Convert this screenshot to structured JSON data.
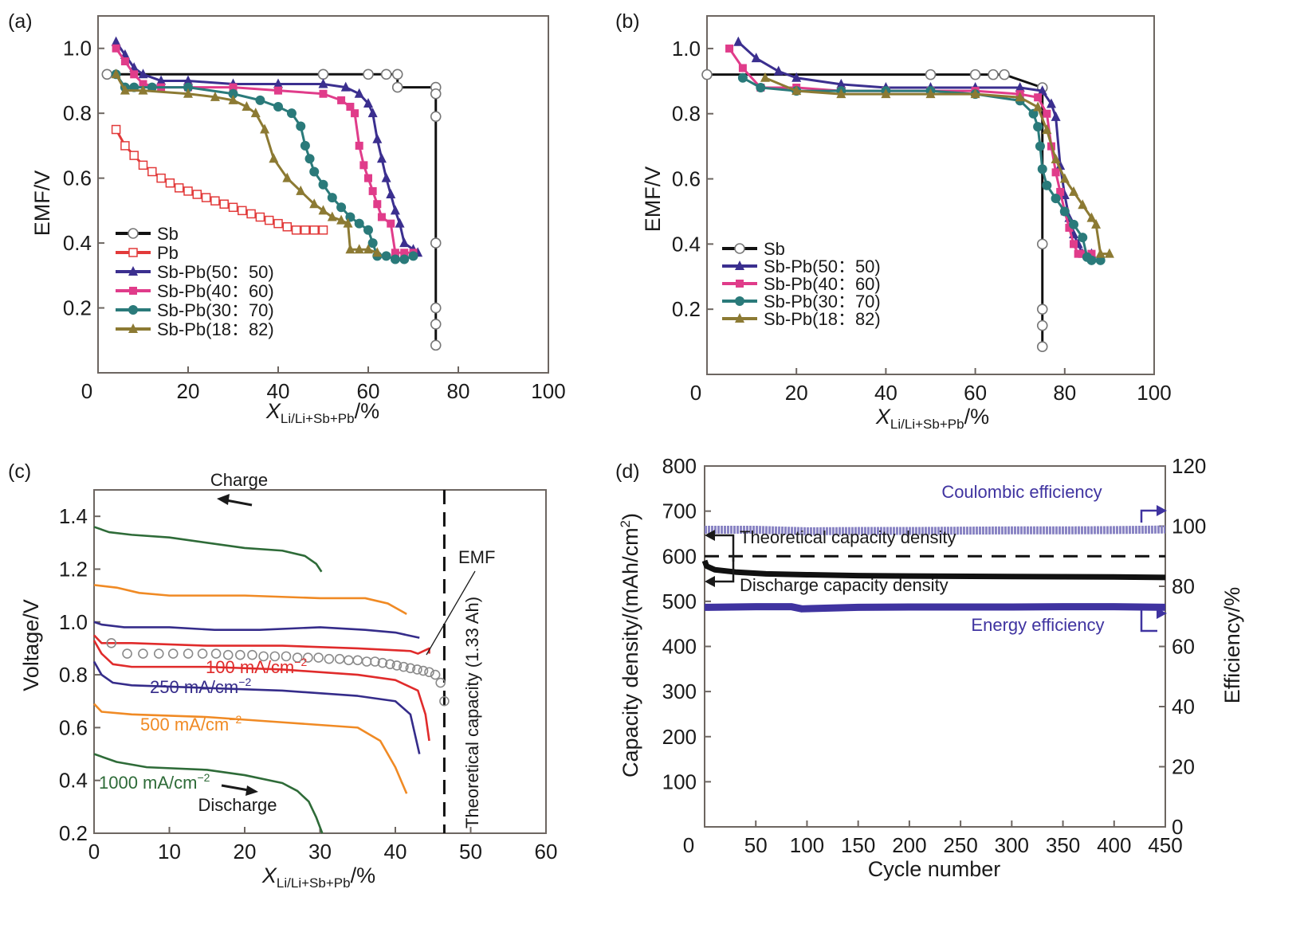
{
  "chart_data": [
    {
      "id": "a",
      "type": "line",
      "panel_label": "(a)",
      "title": "",
      "xlabel": "X",
      "xlabel_sub": "Li/Li+Sb+Pb",
      "xlabel_suffix": "/%",
      "ylabel": "EMF/V",
      "xlim": [
        0,
        100
      ],
      "ylim": [
        0,
        1.1
      ],
      "xticks": [
        0,
        20,
        40,
        60,
        80,
        100
      ],
      "yticks": [
        0.2,
        0.4,
        0.6,
        0.8,
        1.0
      ],
      "ytick_labels": [
        "0.2",
        "0.4",
        "0.6",
        "0.8",
        "1.0"
      ],
      "legend_position": "lower-left",
      "series": [
        {
          "name": "Sb",
          "color": "#111111",
          "marker": "open-circle",
          "x": [
            2,
            50,
            60,
            64,
            66.5,
            66.5,
            75,
            75,
            75,
            75,
            75,
            75,
            75
          ],
          "y": [
            0.92,
            0.92,
            0.92,
            0.92,
            0.92,
            0.88,
            0.88,
            0.86,
            0.79,
            0.4,
            0.2,
            0.15,
            0.085
          ]
        },
        {
          "name": "Pb",
          "color": "#e23a3a",
          "marker": "open-square",
          "x": [
            4,
            6,
            8,
            10,
            12,
            14,
            16,
            18,
            20,
            22,
            24,
            26,
            28,
            30,
            32,
            34,
            36,
            38,
            40,
            42,
            44,
            46,
            48,
            50
          ],
          "y": [
            0.75,
            0.7,
            0.67,
            0.64,
            0.62,
            0.6,
            0.585,
            0.57,
            0.56,
            0.55,
            0.54,
            0.53,
            0.52,
            0.51,
            0.5,
            0.49,
            0.48,
            0.47,
            0.46,
            0.45,
            0.44,
            0.44,
            0.44,
            0.44
          ]
        },
        {
          "name": "Sb-Pb(50：50)",
          "color": "#3b2f8f",
          "marker": "filled-triangle",
          "x": [
            4,
            6,
            8,
            10,
            14,
            20,
            30,
            40,
            50,
            55,
            58,
            60,
            61,
            62,
            63,
            64,
            65,
            66,
            67,
            68,
            70,
            71
          ],
          "y": [
            1.02,
            0.98,
            0.94,
            0.92,
            0.9,
            0.9,
            0.89,
            0.89,
            0.89,
            0.88,
            0.86,
            0.83,
            0.8,
            0.72,
            0.66,
            0.6,
            0.55,
            0.5,
            0.46,
            0.4,
            0.38,
            0.37
          ]
        },
        {
          "name": "Sb-Pb(40：60)",
          "color": "#e03c8a",
          "marker": "filled-square",
          "x": [
            4,
            6,
            8,
            10,
            14,
            20,
            30,
            40,
            50,
            54,
            56,
            57,
            58,
            59,
            60,
            61,
            62,
            63,
            65,
            66,
            68,
            70
          ],
          "y": [
            1.0,
            0.96,
            0.92,
            0.89,
            0.88,
            0.88,
            0.88,
            0.87,
            0.86,
            0.84,
            0.82,
            0.8,
            0.7,
            0.64,
            0.6,
            0.56,
            0.52,
            0.48,
            0.46,
            0.37,
            0.37,
            0.37
          ]
        },
        {
          "name": "Sb-Pb(30：70)",
          "color": "#2a7a7a",
          "marker": "filled-circle",
          "x": [
            4,
            6,
            8,
            12,
            20,
            30,
            36,
            40,
            43,
            45,
            46,
            47,
            48,
            50,
            52,
            54,
            56,
            58,
            60,
            61,
            62,
            64,
            66,
            68,
            70
          ],
          "y": [
            0.92,
            0.88,
            0.88,
            0.88,
            0.88,
            0.86,
            0.84,
            0.82,
            0.8,
            0.76,
            0.7,
            0.66,
            0.62,
            0.58,
            0.54,
            0.51,
            0.48,
            0.46,
            0.44,
            0.4,
            0.36,
            0.36,
            0.35,
            0.35,
            0.36
          ]
        },
        {
          "name": "Sb-Pb(18：82)",
          "color": "#8c7a33",
          "marker": "filled-triangle",
          "x": [
            4,
            6,
            10,
            20,
            26,
            30,
            33,
            35,
            37,
            39,
            42,
            45,
            48,
            50,
            52,
            54,
            55.5,
            56,
            58,
            60,
            62
          ],
          "y": [
            0.92,
            0.87,
            0.87,
            0.86,
            0.85,
            0.84,
            0.82,
            0.8,
            0.75,
            0.66,
            0.6,
            0.56,
            0.52,
            0.5,
            0.48,
            0.47,
            0.46,
            0.38,
            0.38,
            0.38,
            0.37
          ]
        }
      ]
    },
    {
      "id": "b",
      "type": "line",
      "panel_label": "(b)",
      "title": "",
      "xlabel": "X",
      "xlabel_sub": "Li/Li+Sb+Pb",
      "xlabel_suffix": "/%",
      "ylabel": "EMF/V",
      "xlim": [
        0,
        100
      ],
      "ylim": [
        0,
        1.1
      ],
      "xticks": [
        0,
        20,
        40,
        60,
        80,
        100
      ],
      "yticks": [
        0.2,
        0.4,
        0.6,
        0.8,
        1.0
      ],
      "ytick_labels": [
        "0.2",
        "0.4",
        "0.6",
        "0.8",
        "1.0"
      ],
      "legend_position": "lower-left",
      "series": [
        {
          "name": "Sb",
          "color": "#111111",
          "marker": "open-circle",
          "x": [
            0,
            50,
            60,
            64,
            66.5,
            75,
            75,
            75,
            75,
            75
          ],
          "y": [
            0.92,
            0.92,
            0.92,
            0.92,
            0.92,
            0.88,
            0.4,
            0.2,
            0.15,
            0.085
          ]
        },
        {
          "name": "Sb-Pb(50：50)",
          "color": "#3b2f8f",
          "marker": "filled-triangle",
          "x": [
            7,
            11,
            16,
            20,
            30,
            40,
            50,
            60,
            70,
            75,
            77,
            78,
            79,
            80,
            81,
            82,
            83,
            84,
            86
          ],
          "y": [
            1.02,
            0.97,
            0.93,
            0.91,
            0.89,
            0.88,
            0.88,
            0.88,
            0.88,
            0.87,
            0.83,
            0.79,
            0.64,
            0.55,
            0.48,
            0.43,
            0.4,
            0.37,
            0.37
          ]
        },
        {
          "name": "Sb-Pb(40：60)",
          "color": "#e03c8a",
          "marker": "filled-square",
          "x": [
            5,
            8,
            12,
            20,
            30,
            40,
            50,
            60,
            70,
            74,
            76,
            77,
            78,
            79,
            80,
            81,
            82,
            83,
            84,
            86
          ],
          "y": [
            1.0,
            0.94,
            0.88,
            0.88,
            0.87,
            0.87,
            0.87,
            0.87,
            0.86,
            0.85,
            0.8,
            0.7,
            0.62,
            0.56,
            0.5,
            0.45,
            0.4,
            0.37,
            0.37,
            0.37
          ]
        },
        {
          "name": "Sb-Pb(30：70)",
          "color": "#2a7a7a",
          "marker": "filled-circle",
          "x": [
            8,
            12,
            20,
            30,
            40,
            50,
            60,
            70,
            73,
            74,
            74.5,
            75,
            76,
            78,
            80,
            82,
            84,
            85,
            86,
            88
          ],
          "y": [
            0.91,
            0.88,
            0.87,
            0.87,
            0.87,
            0.87,
            0.86,
            0.84,
            0.8,
            0.76,
            0.7,
            0.63,
            0.58,
            0.54,
            0.5,
            0.46,
            0.42,
            0.36,
            0.35,
            0.35
          ]
        },
        {
          "name": "Sb-Pb(18：82)",
          "color": "#8c7a33",
          "marker": "filled-triangle",
          "x": [
            13,
            20,
            30,
            40,
            50,
            60,
            70,
            74,
            76,
            78,
            80,
            82,
            84,
            86,
            87,
            88,
            90
          ],
          "y": [
            0.91,
            0.87,
            0.86,
            0.86,
            0.86,
            0.86,
            0.85,
            0.82,
            0.75,
            0.66,
            0.6,
            0.56,
            0.52,
            0.48,
            0.46,
            0.37,
            0.37
          ]
        }
      ]
    },
    {
      "id": "c",
      "type": "line",
      "panel_label": "(c)",
      "title": "",
      "xlabel": "X",
      "xlabel_sub": "Li/Li+Sb+Pb",
      "xlabel_suffix": "/%",
      "ylabel": "Voltage/V",
      "xlim": [
        0,
        60
      ],
      "ylim": [
        0.2,
        1.5
      ],
      "xticks": [
        0,
        10,
        20,
        30,
        40,
        50,
        60
      ],
      "yticks": [
        0.2,
        0.4,
        0.6,
        0.8,
        1.0,
        1.2,
        1.4
      ],
      "ytick_labels": [
        "0.2",
        "0.4",
        "0.6",
        "0.8",
        "1.0",
        "1.2",
        "1.4"
      ],
      "vline": {
        "x": 46.5,
        "style": "dashed",
        "label": "Theoretical capacity (1.33 Ah)"
      },
      "series": [
        {
          "name": "1000 mA/cm⁻² charge",
          "color": "#2e6b38",
          "x": [
            0,
            2,
            5,
            10,
            20,
            25,
            28,
            29.5,
            30.2
          ],
          "y": [
            1.36,
            1.34,
            1.33,
            1.32,
            1.28,
            1.27,
            1.25,
            1.22,
            1.19
          ]
        },
        {
          "name": "500 mA/cm⁻² charge",
          "color": "#f08a24",
          "x": [
            0,
            3,
            6,
            10,
            20,
            30,
            36,
            39,
            41.5
          ],
          "y": [
            1.14,
            1.13,
            1.11,
            1.1,
            1.1,
            1.09,
            1.09,
            1.07,
            1.03
          ]
        },
        {
          "name": "250 mA/cm⁻² charge",
          "color": "#352c8a",
          "x": [
            0,
            1,
            4,
            10,
            16,
            22,
            30,
            36,
            40,
            43.2
          ],
          "y": [
            1.0,
            0.99,
            0.98,
            0.98,
            0.97,
            0.97,
            0.98,
            0.97,
            0.96,
            0.94
          ]
        },
        {
          "name": "100 mA/cm⁻² charge",
          "color": "#e02b2b",
          "x": [
            0,
            1,
            2.5,
            5,
            15,
            25,
            35,
            42,
            43,
            44.5,
            44.5
          ],
          "y": [
            0.95,
            0.92,
            0.92,
            0.92,
            0.91,
            0.91,
            0.9,
            0.89,
            0.88,
            0.9,
            0.88
          ]
        },
        {
          "name": "100 mA/cm⁻² discharge",
          "color": "#e02b2b",
          "x": [
            0,
            1,
            2.5,
            5,
            15,
            25,
            35,
            40,
            43,
            44,
            44.5
          ],
          "y": [
            0.93,
            0.88,
            0.84,
            0.83,
            0.83,
            0.82,
            0.8,
            0.78,
            0.74,
            0.65,
            0.55
          ]
        },
        {
          "name": "250 mA/cm⁻² discharge",
          "color": "#352c8a",
          "x": [
            0,
            1,
            2.5,
            5,
            15,
            25,
            35,
            40,
            42,
            43.2
          ],
          "y": [
            0.85,
            0.8,
            0.77,
            0.76,
            0.75,
            0.74,
            0.72,
            0.7,
            0.65,
            0.5
          ]
        },
        {
          "name": "500 mA/cm⁻² discharge",
          "color": "#f08a24",
          "x": [
            0,
            1,
            5,
            15,
            25,
            35,
            38,
            40,
            41.5
          ],
          "y": [
            0.69,
            0.66,
            0.65,
            0.64,
            0.62,
            0.6,
            0.55,
            0.45,
            0.35
          ]
        },
        {
          "name": "1000 mA/cm⁻² discharge",
          "color": "#2e6b38",
          "x": [
            0,
            3,
            7,
            15,
            20,
            25,
            27,
            28.5,
            29.5,
            30.3
          ],
          "y": [
            0.5,
            0.47,
            0.45,
            0.44,
            0.42,
            0.39,
            0.36,
            0.32,
            0.26,
            0.2
          ]
        },
        {
          "name": "EMF",
          "color": "#888888",
          "marker": "open-circle",
          "x": [
            2.3,
            4.4,
            6.5,
            8.6,
            10.5,
            12.5,
            14.4,
            16.2,
            17.8,
            19.4,
            21,
            22.5,
            24,
            25.5,
            27,
            28.4,
            29.8,
            31.2,
            32.6,
            33.8,
            35,
            36.2,
            37.3,
            38.3,
            39.3,
            40.2,
            41.1,
            42,
            42.9,
            43.7,
            44.5,
            45.3,
            46,
            46.5
          ],
          "y": [
            0.92,
            0.88,
            0.88,
            0.88,
            0.88,
            0.88,
            0.88,
            0.88,
            0.875,
            0.875,
            0.875,
            0.87,
            0.87,
            0.87,
            0.865,
            0.865,
            0.865,
            0.86,
            0.86,
            0.855,
            0.855,
            0.85,
            0.85,
            0.845,
            0.84,
            0.835,
            0.83,
            0.825,
            0.82,
            0.815,
            0.81,
            0.8,
            0.77,
            0.7
          ]
        }
      ],
      "annotations": {
        "charge": "Charge",
        "discharge": "Discharge",
        "emf": "EMF",
        "i100": "100 mA/cm",
        "i250": "250 mA/cm",
        "i500": "500 mA/cm",
        "i1000": "1000 mA/cm",
        "exponent": "−2"
      }
    },
    {
      "id": "d",
      "type": "line",
      "panel_label": "(d)",
      "title": "",
      "xlabel": "Cycle number",
      "ylabel": "Capacity density/(mAh/cm",
      "ylabel_sup": "2",
      "ylabel_end": ")",
      "y2label": "Efficiency/%",
      "xlim": [
        0,
        450
      ],
      "ylim": [
        0,
        800
      ],
      "y2lim": [
        0,
        120
      ],
      "xticks": [
        0,
        50,
        100,
        150,
        200,
        250,
        300,
        350,
        400,
        450
      ],
      "yticks": [
        100,
        200,
        300,
        400,
        500,
        600,
        700,
        800
      ],
      "ytick_labels": [
        "100",
        "200",
        "300",
        "400",
        "500",
        "600",
        "700",
        "800"
      ],
      "y2ticks": [
        0,
        20,
        40,
        60,
        80,
        100,
        120
      ],
      "series": [
        {
          "name": "Coulombic efficiency",
          "axis": "right",
          "color": "#8a85c4",
          "x": [
            0,
            50,
            100,
            150,
            200,
            250,
            300,
            350,
            400,
            450
          ],
          "y": [
            98.8,
            98.8,
            98.3,
            98.4,
            98.4,
            98.5,
            98.6,
            98.6,
            98.7,
            98.9
          ]
        },
        {
          "name": "Theoretical capacity density",
          "axis": "left",
          "color": "#111111",
          "style": "dashed",
          "x": [
            0,
            450
          ],
          "y": [
            600,
            600
          ]
        },
        {
          "name": "Discharge capacity density",
          "axis": "left",
          "color": "#111111",
          "x": [
            0,
            2,
            10,
            30,
            60,
            100,
            150,
            200,
            300,
            400,
            450
          ],
          "y": [
            590,
            578,
            570,
            565,
            561,
            559,
            557,
            556,
            555,
            554,
            553
          ]
        },
        {
          "name": "Energy efficiency",
          "axis": "right",
          "color": "#3f33a0",
          "x": [
            0,
            50,
            85,
            95,
            150,
            200,
            250,
            300,
            350,
            400,
            450
          ],
          "y": [
            73.0,
            73.2,
            73.2,
            72.5,
            73.0,
            73.1,
            73.1,
            73.1,
            73.2,
            73.2,
            73.0
          ]
        }
      ],
      "annotations": {
        "coulombic": "Coulombic efficiency",
        "theoretical": "Theoretical capacity density",
        "discharge": "Discharge capacity density",
        "energy": "Energy efficiency"
      }
    }
  ]
}
